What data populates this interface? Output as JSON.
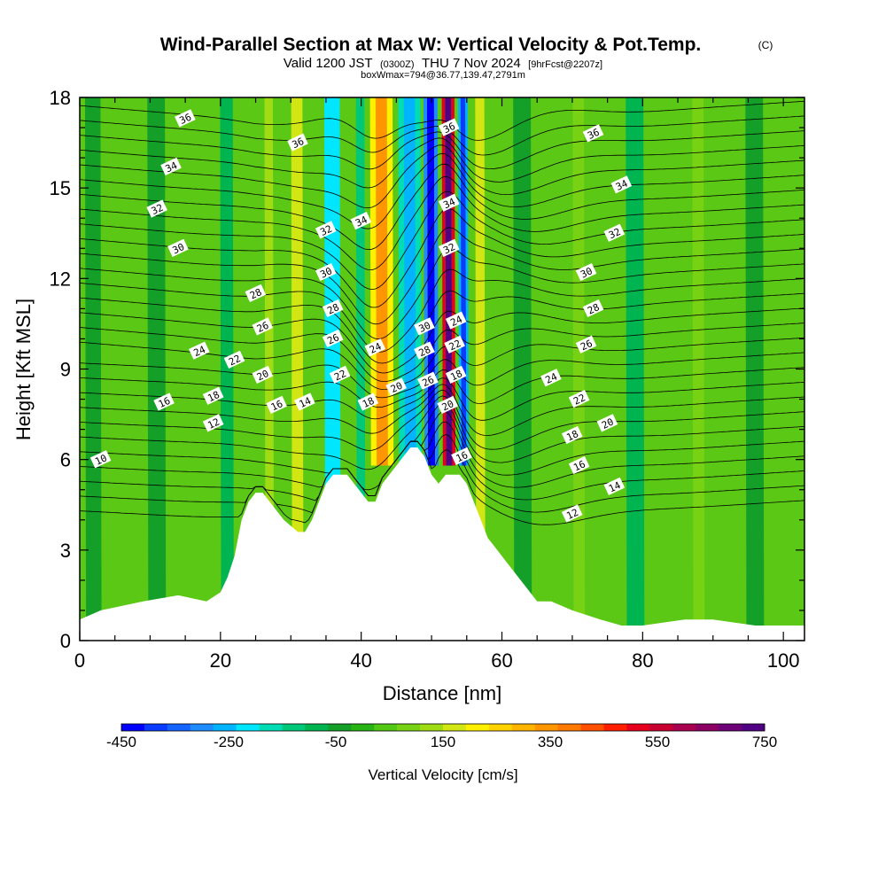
{
  "title": {
    "main": "Wind-Parallel Section at Max W: Vertical Velocity & Pot.Temp.",
    "copyright": "(C)",
    "line2_a": "Valid 1200 JST",
    "line2_b": "(0300Z)",
    "line2_c": "THU 7 Nov 2024",
    "line2_d": "[9hrFcst@2207z]",
    "line3": "boxWmax=794@36.77,139.47,2791m"
  },
  "chart_data": {
    "type": "heatmap",
    "xlabel": "Distance [nm]",
    "ylabel": "Height [Kft MSL]",
    "xlim": [
      0,
      103
    ],
    "ylim": [
      0,
      18
    ],
    "x_ticks": [
      0,
      20,
      40,
      60,
      80,
      100
    ],
    "y_ticks": [
      0,
      3,
      6,
      9,
      12,
      15,
      18
    ],
    "colorbar": {
      "title": "Vertical Velocity [cm/s]",
      "tick_labels": [
        "-450",
        "-250",
        "-50",
        "150",
        "350",
        "550",
        "750"
      ],
      "tick_values": [
        -450,
        -250,
        -50,
        150,
        350,
        550,
        750
      ],
      "range": [
        -450,
        750
      ],
      "levels": 24,
      "colors": [
        "#0000ff",
        "#0a3cff",
        "#1464ff",
        "#1e8cff",
        "#00b4ff",
        "#00e6ff",
        "#00dcb4",
        "#00c878",
        "#00b450",
        "#14a028",
        "#28b414",
        "#50c814",
        "#78d214",
        "#a0dc14",
        "#d2e614",
        "#fff000",
        "#ffd200",
        "#ffb400",
        "#ff9600",
        "#ff7800",
        "#ff5000",
        "#ff1e00",
        "#e6001e",
        "#c80032",
        "#aa0050",
        "#8c0064",
        "#6e0078",
        "#500082"
      ]
    },
    "terrain_kft": [
      [
        0,
        0.7
      ],
      [
        3,
        1.0
      ],
      [
        9,
        1.3
      ],
      [
        14,
        1.5
      ],
      [
        18,
        1.3
      ],
      [
        20,
        1.6
      ],
      [
        21,
        2.1
      ],
      [
        22,
        2.8
      ],
      [
        23,
        4.0
      ],
      [
        24,
        4.6
      ],
      [
        25,
        4.9
      ],
      [
        26,
        4.9
      ],
      [
        27,
        4.6
      ],
      [
        28,
        4.3
      ],
      [
        29,
        4.0
      ],
      [
        30,
        3.8
      ],
      [
        31,
        3.6
      ],
      [
        32,
        3.6
      ],
      [
        33,
        4.0
      ],
      [
        34,
        4.6
      ],
      [
        35,
        5.2
      ],
      [
        36,
        5.5
      ],
      [
        38,
        5.5
      ],
      [
        39,
        5.2
      ],
      [
        40,
        4.9
      ],
      [
        41,
        4.6
      ],
      [
        42,
        4.6
      ],
      [
        43,
        5.2
      ],
      [
        44,
        5.5
      ],
      [
        45,
        5.8
      ],
      [
        46,
        6.1
      ],
      [
        47,
        6.4
      ],
      [
        48,
        6.4
      ],
      [
        49,
        6.1
      ],
      [
        50,
        5.5
      ],
      [
        51,
        5.2
      ],
      [
        52,
        5.5
      ],
      [
        54,
        5.5
      ],
      [
        55,
        5.2
      ],
      [
        56,
        4.6
      ],
      [
        57,
        4.0
      ],
      [
        58,
        3.4
      ],
      [
        59,
        3.1
      ],
      [
        60,
        2.8
      ],
      [
        61,
        2.5
      ],
      [
        62,
        2.2
      ],
      [
        63,
        1.9
      ],
      [
        64,
        1.6
      ],
      [
        65,
        1.3
      ],
      [
        67,
        1.3
      ],
      [
        70,
        1.0
      ],
      [
        74,
        0.7
      ],
      [
        77,
        0.5
      ],
      [
        80,
        0.5
      ],
      [
        86,
        0.7
      ],
      [
        90,
        0.7
      ],
      [
        96,
        0.5
      ],
      [
        103,
        0.5
      ]
    ],
    "velocity_bands": [
      {
        "x": 2,
        "w": 2.2,
        "v": -60
      },
      {
        "x": 11,
        "w": 2.5,
        "v": -30
      },
      {
        "x": 21,
        "w": 1.8,
        "v": -90
      },
      {
        "x": 27,
        "w": 1.2,
        "v": 120
      },
      {
        "x": 31,
        "w": 1.6,
        "v": 190
      },
      {
        "x": 36,
        "w": 2.2,
        "v": -230
      },
      {
        "x": 40,
        "w": 1.2,
        "v": -110
      },
      {
        "x": 43,
        "w": 1.6,
        "v": 330
      },
      {
        "x": 47,
        "w": 1.6,
        "v": -260
      },
      {
        "x": 50,
        "w": 1.0,
        "v": -420
      },
      {
        "x": 52.5,
        "w": 0.9,
        "v": 740
      },
      {
        "x": 54.6,
        "w": 0.7,
        "v": -380
      },
      {
        "x": 57,
        "w": 1.3,
        "v": 160
      },
      {
        "x": 63,
        "w": 2.5,
        "v": -40
      },
      {
        "x": 71,
        "w": 1.6,
        "v": 90
      },
      {
        "x": 79,
        "w": 2.5,
        "v": -80
      },
      {
        "x": 88,
        "w": 1.6,
        "v": 80
      },
      {
        "x": 96,
        "w": 2.5,
        "v": -50
      }
    ],
    "theta_contours": {
      "levels": [
        10,
        11,
        12,
        13,
        14,
        15,
        16,
        17,
        18,
        19,
        20,
        21,
        22,
        23,
        24,
        25,
        26,
        27,
        28,
        29,
        30,
        31,
        32,
        33,
        34,
        35,
        36,
        37
      ],
      "labeled": [
        {
          "v": "36",
          "x": 15,
          "y": 17.3
        },
        {
          "v": "34",
          "x": 13,
          "y": 15.7
        },
        {
          "v": "32",
          "x": 11,
          "y": 14.3
        },
        {
          "v": "30",
          "x": 14,
          "y": 13.0
        },
        {
          "v": "28",
          "x": 25,
          "y": 11.5
        },
        {
          "v": "26",
          "x": 26,
          "y": 10.4
        },
        {
          "v": "24",
          "x": 17,
          "y": 9.6
        },
        {
          "v": "22",
          "x": 22,
          "y": 9.3
        },
        {
          "v": "20",
          "x": 26,
          "y": 8.8
        },
        {
          "v": "18",
          "x": 19,
          "y": 8.1
        },
        {
          "v": "16",
          "x": 12,
          "y": 7.9
        },
        {
          "v": "16",
          "x": 28,
          "y": 7.8
        },
        {
          "v": "14",
          "x": 32,
          "y": 7.9
        },
        {
          "v": "12",
          "x": 19,
          "y": 7.2
        },
        {
          "v": "10",
          "x": 3,
          "y": 6.0
        },
        {
          "v": "36",
          "x": 31,
          "y": 16.5
        },
        {
          "v": "34",
          "x": 40,
          "y": 13.9
        },
        {
          "v": "32",
          "x": 35,
          "y": 13.6
        },
        {
          "v": "30",
          "x": 35,
          "y": 12.2
        },
        {
          "v": "28",
          "x": 36,
          "y": 11.0
        },
        {
          "v": "26",
          "x": 36,
          "y": 10.0
        },
        {
          "v": "24",
          "x": 42,
          "y": 9.7
        },
        {
          "v": "22",
          "x": 37,
          "y": 8.8
        },
        {
          "v": "20",
          "x": 45,
          "y": 8.4
        },
        {
          "v": "18",
          "x": 41,
          "y": 7.9
        },
        {
          "v": "36",
          "x": 52.5,
          "y": 17.0
        },
        {
          "v": "34",
          "x": 52.5,
          "y": 14.5
        },
        {
          "v": "32",
          "x": 52.5,
          "y": 13.0
        },
        {
          "v": "30",
          "x": 49,
          "y": 10.4
        },
        {
          "v": "28",
          "x": 49,
          "y": 9.6
        },
        {
          "v": "26",
          "x": 49.5,
          "y": 8.6
        },
        {
          "v": "24",
          "x": 53.5,
          "y": 10.6
        },
        {
          "v": "22",
          "x": 53.3,
          "y": 9.8
        },
        {
          "v": "20",
          "x": 52.3,
          "y": 7.8
        },
        {
          "v": "18",
          "x": 53.5,
          "y": 8.8
        },
        {
          "v": "16",
          "x": 54.3,
          "y": 6.1
        },
        {
          "v": "36",
          "x": 73,
          "y": 16.8
        },
        {
          "v": "34",
          "x": 77,
          "y": 15.1
        },
        {
          "v": "32",
          "x": 76,
          "y": 13.5
        },
        {
          "v": "30",
          "x": 72,
          "y": 12.2
        },
        {
          "v": "28",
          "x": 73,
          "y": 11.0
        },
        {
          "v": "26",
          "x": 72,
          "y": 9.8
        },
        {
          "v": "24",
          "x": 67,
          "y": 8.7
        },
        {
          "v": "22",
          "x": 71,
          "y": 8.0
        },
        {
          "v": "20",
          "x": 75,
          "y": 7.2
        },
        {
          "v": "18",
          "x": 70,
          "y": 6.8
        },
        {
          "v": "16",
          "x": 71,
          "y": 5.8
        },
        {
          "v": "14",
          "x": 76,
          "y": 5.1
        },
        {
          "v": "12",
          "x": 70,
          "y": 4.2
        }
      ]
    }
  }
}
